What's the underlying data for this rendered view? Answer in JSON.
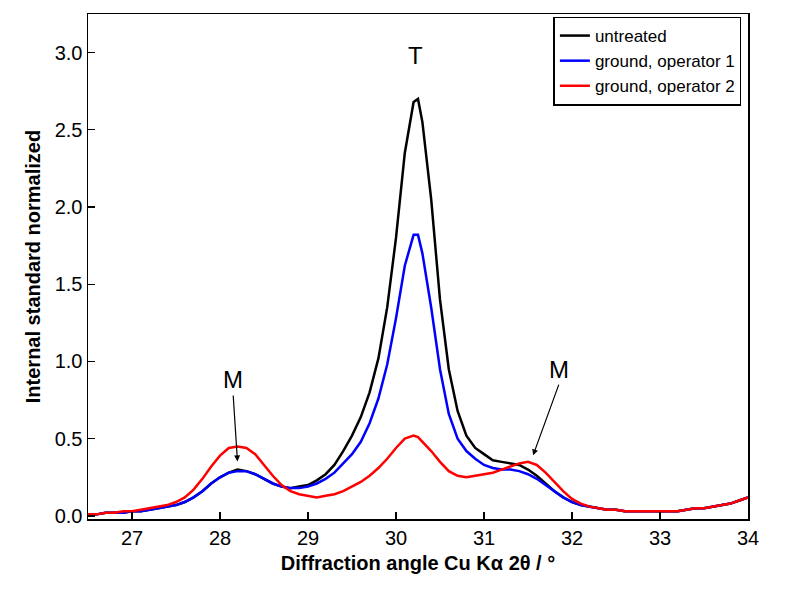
{
  "chart_data": {
    "type": "line",
    "x_label": "Diffraction angle Cu Kα 2θ / °",
    "y_label": "Internal standard normalized",
    "x": [
      26.5,
      26.6,
      26.7,
      26.8,
      26.9,
      27.0,
      27.1,
      27.2,
      27.3,
      27.4,
      27.5,
      27.6,
      27.7,
      27.8,
      27.9,
      28.0,
      28.1,
      28.2,
      28.3,
      28.4,
      28.5,
      28.6,
      28.7,
      28.8,
      28.9,
      29.0,
      29.1,
      29.2,
      29.3,
      29.4,
      29.5,
      29.6,
      29.7,
      29.8,
      29.9,
      30.0,
      30.1,
      30.2,
      30.25,
      30.3,
      30.4,
      30.5,
      30.6,
      30.7,
      30.8,
      30.9,
      31.0,
      31.1,
      31.2,
      31.3,
      31.4,
      31.5,
      31.6,
      31.7,
      31.8,
      31.9,
      32.0,
      32.1,
      32.2,
      32.3,
      32.4,
      32.5,
      32.6,
      32.7,
      32.8,
      32.9,
      33.0,
      33.1,
      33.2,
      33.3,
      33.4,
      33.5,
      33.6,
      33.7,
      33.8,
      33.9,
      34.0
    ],
    "series": [
      {
        "name": "untreated",
        "color": "#000000",
        "values": [
          0.01,
          0.01,
          0.02,
          0.02,
          0.02,
          0.03,
          0.03,
          0.04,
          0.05,
          0.06,
          0.07,
          0.09,
          0.12,
          0.16,
          0.21,
          0.25,
          0.28,
          0.3,
          0.29,
          0.27,
          0.24,
          0.21,
          0.19,
          0.18,
          0.19,
          0.2,
          0.23,
          0.27,
          0.33,
          0.42,
          0.52,
          0.64,
          0.8,
          1.02,
          1.35,
          1.8,
          2.35,
          2.68,
          2.7,
          2.55,
          2.05,
          1.4,
          0.95,
          0.68,
          0.52,
          0.44,
          0.4,
          0.36,
          0.35,
          0.34,
          0.33,
          0.3,
          0.26,
          0.21,
          0.16,
          0.12,
          0.09,
          0.07,
          0.06,
          0.05,
          0.04,
          0.04,
          0.03,
          0.03,
          0.03,
          0.03,
          0.03,
          0.03,
          0.03,
          0.04,
          0.05,
          0.05,
          0.06,
          0.07,
          0.08,
          0.1,
          0.12
        ]
      },
      {
        "name": "ground, operator 1",
        "color": "#0000ff",
        "values": [
          0.01,
          0.01,
          0.02,
          0.02,
          0.02,
          0.03,
          0.03,
          0.04,
          0.05,
          0.06,
          0.07,
          0.09,
          0.12,
          0.16,
          0.21,
          0.25,
          0.28,
          0.29,
          0.29,
          0.27,
          0.24,
          0.21,
          0.19,
          0.18,
          0.18,
          0.19,
          0.21,
          0.24,
          0.28,
          0.34,
          0.4,
          0.48,
          0.6,
          0.76,
          0.98,
          1.28,
          1.62,
          1.82,
          1.82,
          1.7,
          1.35,
          0.95,
          0.66,
          0.5,
          0.42,
          0.37,
          0.33,
          0.31,
          0.3,
          0.3,
          0.29,
          0.27,
          0.24,
          0.2,
          0.16,
          0.12,
          0.09,
          0.07,
          0.06,
          0.05,
          0.04,
          0.04,
          0.03,
          0.03,
          0.03,
          0.03,
          0.03,
          0.03,
          0.03,
          0.04,
          0.05,
          0.05,
          0.06,
          0.07,
          0.08,
          0.1,
          0.12
        ]
      },
      {
        "name": "ground, operator 2",
        "color": "#ff0000",
        "values": [
          0.01,
          0.01,
          0.02,
          0.02,
          0.03,
          0.03,
          0.04,
          0.05,
          0.06,
          0.07,
          0.09,
          0.12,
          0.17,
          0.24,
          0.32,
          0.39,
          0.44,
          0.45,
          0.44,
          0.4,
          0.33,
          0.26,
          0.2,
          0.16,
          0.14,
          0.13,
          0.12,
          0.13,
          0.14,
          0.16,
          0.19,
          0.22,
          0.26,
          0.31,
          0.37,
          0.44,
          0.5,
          0.52,
          0.51,
          0.48,
          0.42,
          0.35,
          0.29,
          0.26,
          0.25,
          0.26,
          0.27,
          0.28,
          0.3,
          0.32,
          0.34,
          0.35,
          0.33,
          0.28,
          0.22,
          0.16,
          0.11,
          0.08,
          0.06,
          0.05,
          0.04,
          0.04,
          0.03,
          0.03,
          0.03,
          0.03,
          0.03,
          0.03,
          0.03,
          0.04,
          0.05,
          0.05,
          0.06,
          0.07,
          0.08,
          0.1,
          0.12
        ]
      }
    ],
    "xlim": [
      26.5,
      34
    ],
    "xticks": [
      27,
      28,
      29,
      30,
      31,
      32,
      33,
      34
    ],
    "ylim": [
      -0.02,
      3.25
    ],
    "yticks": [
      {
        "value": 0,
        "label": "0.0"
      },
      0.5,
      {
        "value": 1,
        "label": "1.0"
      },
      1.5,
      {
        "value": 2,
        "label": "2.0"
      },
      2.5,
      {
        "value": 3,
        "label": "3.0"
      }
    ],
    "annotations": [
      {
        "text": "T",
        "x": 30.22,
        "y": 2.88
      },
      {
        "text": "M",
        "x": 28.15,
        "y": 0.78,
        "arrow_to": [
          28.2,
          0.34
        ]
      },
      {
        "text": "M",
        "x": 31.85,
        "y": 0.85,
        "arrow_to": [
          31.55,
          0.38
        ]
      }
    ],
    "legend": "top right",
    "grid": false
  }
}
